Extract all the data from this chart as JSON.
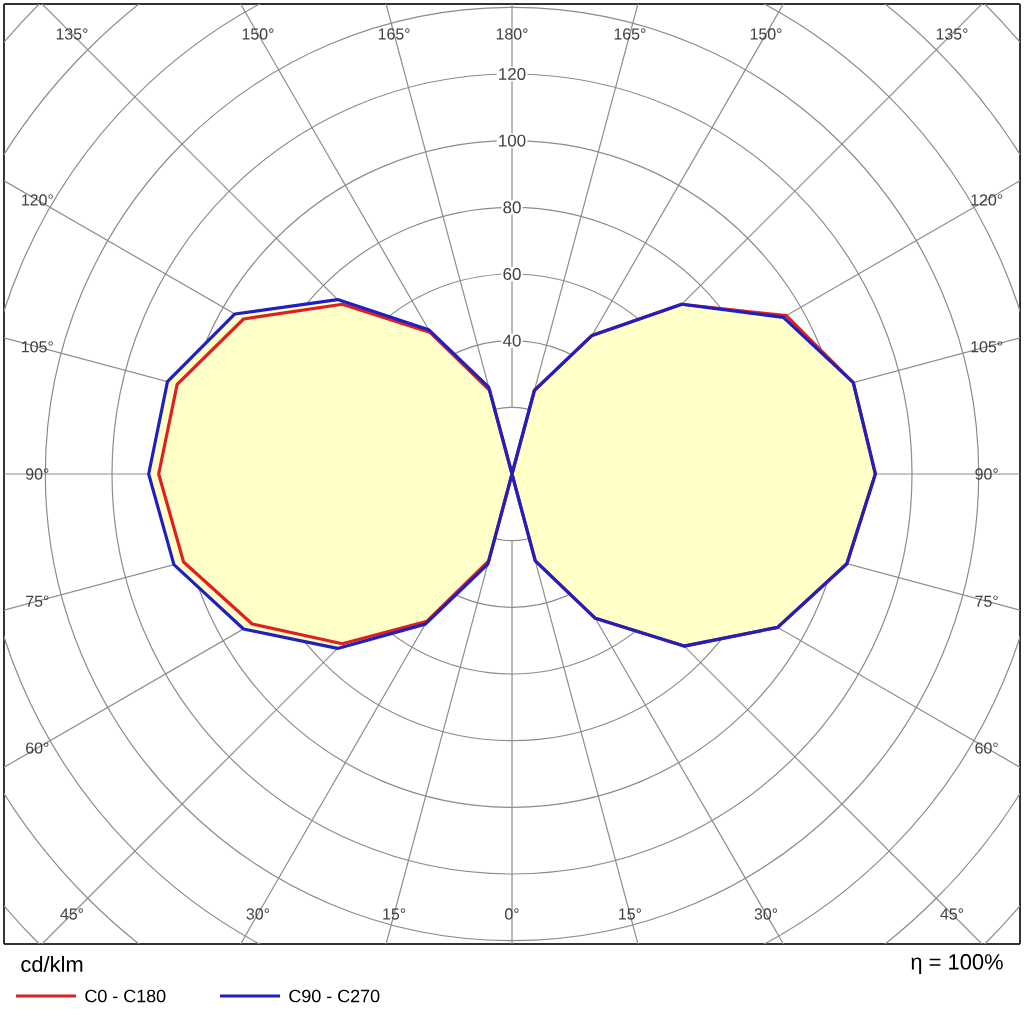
{
  "chart_data": {
    "type": "radar",
    "categories": [
      "180°",
      "165°",
      "150°",
      "135°",
      "120°",
      "105°",
      "90°",
      "75°",
      "60°",
      "45°",
      "30°",
      "15°",
      "0°",
      "15°",
      "30°",
      "45°",
      "60°",
      "75°",
      "90°",
      "105°",
      "120°",
      "135°",
      "150°",
      "165°"
    ],
    "series": [
      {
        "name": "C0 - C180",
        "color": "#e02020",
        "values": [
          0,
          26,
          48,
          72,
          95,
          106,
          109,
          104,
          92,
          73,
          50,
          27,
          0,
          27,
          51,
          72,
          90,
          102,
          106,
          104,
          93,
          72,
          49,
          26
        ]
      },
      {
        "name": "C90 - C270",
        "color": "#2020c0",
        "values": [
          0,
          26,
          48,
          72,
          94,
          106,
          109,
          104,
          92,
          73,
          50,
          27,
          0,
          28,
          52,
          74,
          93,
          105,
          109,
          107,
          96,
          74,
          50,
          27
        ]
      }
    ],
    "ylim": [
      0,
      200
    ],
    "yticks": [
      40,
      60,
      80,
      100,
      120
    ],
    "ylabel": "cd/klm",
    "annotations": [
      "η = 100%"
    ],
    "grid": true,
    "legend": "bottom left"
  }
}
